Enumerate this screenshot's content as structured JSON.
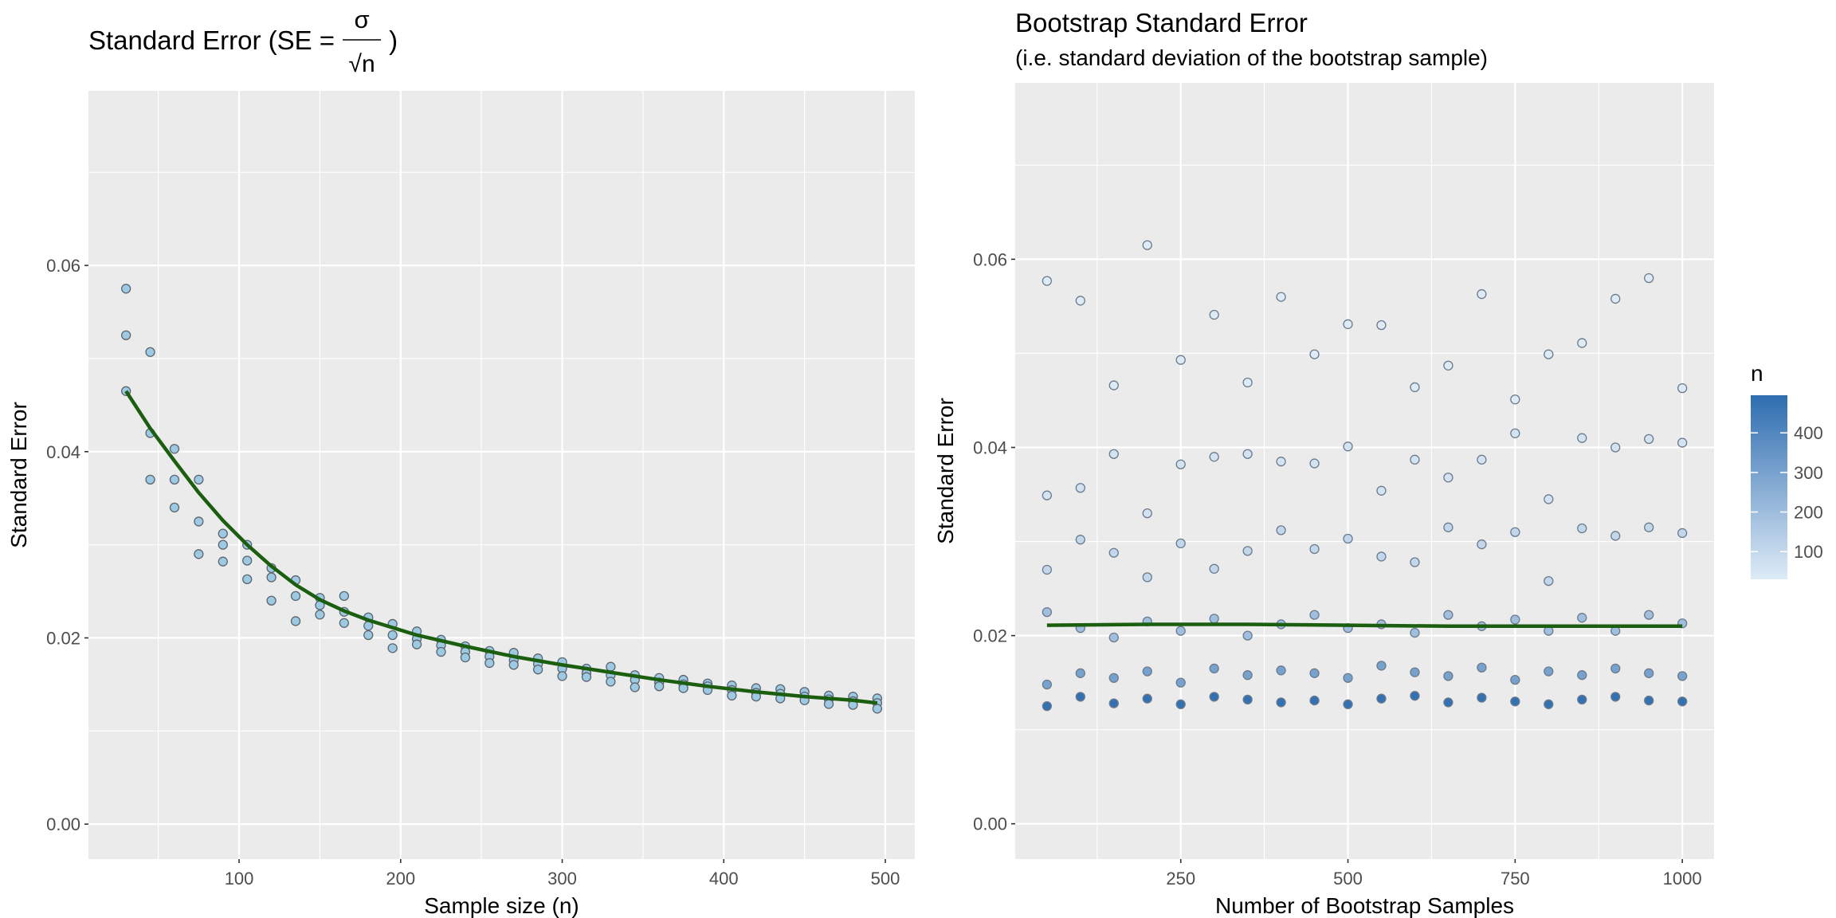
{
  "chart_data": [
    {
      "type": "scatter",
      "title": "Standard Error (SE =",
      "title_numerator": "σ",
      "title_denominator": "√n",
      "title_suffix": ")",
      "x_label": "Sample size (n)",
      "y_label": "Standard Error",
      "xlim": [
        6.75,
        518.25
      ],
      "ylim": [
        -0.00375,
        0.07875
      ],
      "xticks": [
        100,
        200,
        300,
        400,
        500
      ],
      "x_minor_ticks": [
        50,
        150,
        250,
        350,
        450
      ],
      "yticks": [
        {
          "value": 0,
          "label": "0.00"
        },
        0.02,
        0.04,
        0.06
      ],
      "y_minor_ticks": [
        0.01,
        0.03,
        0.05,
        0.07
      ],
      "grid": true,
      "points": {
        "fill": "#9dc9e2",
        "stroke": "#5a6570",
        "x": [
          30,
          30,
          30,
          45,
          45,
          45,
          60,
          60,
          60,
          75,
          75,
          75,
          90,
          90,
          90,
          105,
          105,
          105,
          120,
          120,
          120,
          135,
          135,
          135,
          150,
          150,
          150,
          165,
          165,
          165,
          180,
          180,
          180,
          195,
          195,
          195,
          210,
          210,
          210,
          225,
          225,
          225,
          240,
          240,
          240,
          255,
          255,
          255,
          270,
          270,
          270,
          285,
          285,
          285,
          300,
          300,
          300,
          315,
          315,
          315,
          330,
          330,
          330,
          345,
          345,
          345,
          360,
          360,
          360,
          375,
          375,
          375,
          390,
          390,
          390,
          405,
          405,
          405,
          420,
          420,
          420,
          435,
          435,
          435,
          450,
          450,
          450,
          465,
          465,
          465,
          480,
          480,
          480,
          495,
          495,
          495
        ],
        "y": [
          0.0575,
          0.0525,
          0.0465,
          0.0507,
          0.042,
          0.037,
          0.0403,
          0.037,
          0.034,
          0.037,
          0.0325,
          0.029,
          0.0312,
          0.03,
          0.0282,
          0.03,
          0.0283,
          0.0263,
          0.0275,
          0.0265,
          0.024,
          0.0262,
          0.0245,
          0.0218,
          0.0243,
          0.0235,
          0.0225,
          0.0245,
          0.0228,
          0.0216,
          0.0222,
          0.0213,
          0.0203,
          0.0215,
          0.0203,
          0.0189,
          0.0207,
          0.0199,
          0.0193,
          0.0198,
          0.0192,
          0.0185,
          0.0191,
          0.0185,
          0.0179,
          0.0186,
          0.018,
          0.0173,
          0.0184,
          0.0176,
          0.0171,
          0.0178,
          0.0172,
          0.0166,
          0.0174,
          0.0167,
          0.0159,
          0.0167,
          0.0162,
          0.0158,
          0.0169,
          0.016,
          0.0153,
          0.016,
          0.0155,
          0.0147,
          0.0157,
          0.0152,
          0.0148,
          0.0155,
          0.015,
          0.0146,
          0.0151,
          0.0148,
          0.0144,
          0.0149,
          0.0144,
          0.0138,
          0.0146,
          0.0141,
          0.0137,
          0.0145,
          0.014,
          0.0135,
          0.0142,
          0.0137,
          0.0133,
          0.0138,
          0.0134,
          0.0129,
          0.0137,
          0.0132,
          0.0128,
          0.0135,
          0.013,
          0.0124
        ]
      },
      "trend": {
        "color": "#1b5e0f",
        "x": [
          30,
          45,
          60,
          75,
          90,
          105,
          120,
          135,
          150,
          165,
          180,
          210,
          240,
          270,
          300,
          330,
          360,
          390,
          420,
          450,
          480,
          495
        ],
        "y": [
          0.0465,
          0.0425,
          0.039,
          0.0356,
          0.0326,
          0.03,
          0.0277,
          0.0257,
          0.0241,
          0.0229,
          0.0219,
          0.0203,
          0.0191,
          0.018,
          0.0171,
          0.0163,
          0.0155,
          0.0148,
          0.0142,
          0.0137,
          0.0133,
          0.013
        ]
      }
    },
    {
      "type": "scatter",
      "title": "Bootstrap Standard Error",
      "subtitle": "(i.e. standard deviation of the bootstrap sample)",
      "x_label": "Number of Bootstrap Samples",
      "y_label": "Standard Error",
      "xlim": [
        2.5,
        1047.5
      ],
      "ylim": [
        -0.00375,
        0.07875
      ],
      "xticks": [
        250,
        500,
        750,
        1000
      ],
      "x_minor_ticks": [
        125,
        375,
        625,
        875
      ],
      "yticks": [
        {
          "value": 0,
          "label": "0.00"
        },
        0.02,
        0.04,
        0.06
      ],
      "y_minor_ticks": [
        0.01,
        0.03,
        0.05,
        0.07
      ],
      "grid": true,
      "points": {
        "stroke": "#6b7b8c",
        "x": [
          50,
          50,
          50,
          50,
          50,
          50,
          100,
          100,
          100,
          100,
          100,
          100,
          150,
          150,
          150,
          150,
          150,
          150,
          200,
          200,
          200,
          200,
          200,
          200,
          250,
          250,
          250,
          250,
          250,
          250,
          300,
          300,
          300,
          300,
          300,
          300,
          350,
          350,
          350,
          350,
          350,
          350,
          400,
          400,
          400,
          400,
          400,
          400,
          450,
          450,
          450,
          450,
          450,
          450,
          500,
          500,
          500,
          500,
          500,
          500,
          550,
          550,
          550,
          550,
          550,
          550,
          600,
          600,
          600,
          600,
          600,
          600,
          650,
          650,
          650,
          650,
          650,
          650,
          700,
          700,
          700,
          700,
          700,
          700,
          750,
          750,
          750,
          750,
          750,
          750,
          800,
          800,
          800,
          800,
          800,
          800,
          850,
          850,
          850,
          850,
          850,
          850,
          900,
          900,
          900,
          900,
          900,
          900,
          950,
          950,
          950,
          950,
          950,
          950,
          1000,
          1000,
          1000,
          1000,
          1000,
          1000
        ],
        "y": [
          0.0577,
          0.0349,
          0.027,
          0.0225,
          0.0148,
          0.0125,
          0.0556,
          0.0357,
          0.0302,
          0.0208,
          0.016,
          0.0135,
          0.0466,
          0.0393,
          0.0288,
          0.0198,
          0.0155,
          0.0128,
          0.0615,
          0.033,
          0.0262,
          0.0215,
          0.0162,
          0.0133,
          0.0493,
          0.0382,
          0.0298,
          0.0205,
          0.015,
          0.0127,
          0.0541,
          0.039,
          0.0271,
          0.0218,
          0.0165,
          0.0135,
          0.0469,
          0.0393,
          0.029,
          0.02,
          0.0158,
          0.0132,
          0.056,
          0.0385,
          0.0312,
          0.0212,
          0.0163,
          0.0129,
          0.0499,
          0.0383,
          0.0292,
          0.0222,
          0.016,
          0.0131,
          0.0531,
          0.0401,
          0.0303,
          0.0208,
          0.0155,
          0.0127,
          0.053,
          0.0354,
          0.0284,
          0.0212,
          0.0168,
          0.0133,
          0.0464,
          0.0387,
          0.0278,
          0.0203,
          0.0161,
          0.0136,
          0.0487,
          0.0368,
          0.0315,
          0.0222,
          0.0157,
          0.0129,
          0.0563,
          0.0387,
          0.0297,
          0.021,
          0.0166,
          0.0134,
          0.0451,
          0.0415,
          0.031,
          0.0217,
          0.0153,
          0.013,
          0.0499,
          0.0345,
          0.0258,
          0.0205,
          0.0162,
          0.0127,
          0.0511,
          0.041,
          0.0314,
          0.0219,
          0.0158,
          0.0132,
          0.0558,
          0.04,
          0.0306,
          0.0205,
          0.0165,
          0.0135,
          0.058,
          0.0409,
          0.0315,
          0.0222,
          0.016,
          0.0131,
          0.0463,
          0.0405,
          0.0309,
          0.0213,
          0.0157,
          0.013
        ],
        "n": [
          30,
          60,
          105,
          195,
          300,
          480,
          30,
          60,
          105,
          195,
          300,
          480,
          30,
          60,
          105,
          195,
          300,
          480,
          30,
          60,
          105,
          195,
          300,
          480,
          30,
          60,
          105,
          195,
          300,
          480,
          30,
          60,
          105,
          195,
          300,
          480,
          30,
          60,
          105,
          195,
          300,
          480,
          30,
          60,
          105,
          195,
          300,
          480,
          30,
          60,
          105,
          195,
          300,
          480,
          30,
          60,
          105,
          195,
          300,
          480,
          30,
          60,
          105,
          195,
          300,
          480,
          30,
          60,
          105,
          195,
          300,
          480,
          30,
          60,
          105,
          195,
          300,
          480,
          30,
          60,
          105,
          195,
          300,
          480,
          30,
          60,
          105,
          195,
          300,
          480,
          30,
          60,
          105,
          195,
          300,
          480,
          30,
          60,
          105,
          195,
          300,
          480,
          30,
          60,
          105,
          195,
          300,
          480,
          30,
          60,
          105,
          195,
          300,
          480,
          30,
          60,
          105,
          195,
          300,
          480
        ]
      },
      "trend": {
        "color": "#1b5e0f",
        "x": [
          50,
          200,
          350,
          500,
          650,
          800,
          1000
        ],
        "y": [
          0.0211,
          0.0212,
          0.0212,
          0.0211,
          0.021,
          0.021,
          0.021
        ]
      },
      "colorbar": {
        "title": "n",
        "lim": [
          30,
          495
        ],
        "ticks": [
          100,
          200,
          300,
          400
        ],
        "low": "#deebf7",
        "high": "#2e6db0"
      }
    }
  ]
}
